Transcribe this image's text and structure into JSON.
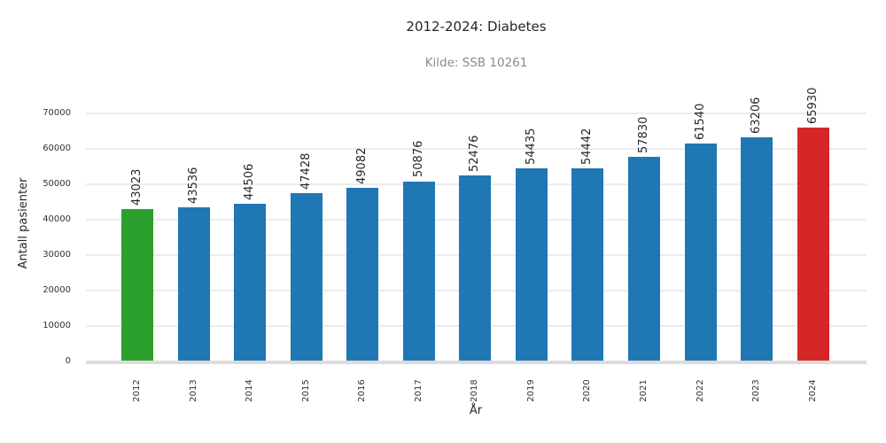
{
  "header": {
    "title": "2012-2024: Diabetes",
    "subtitle": "Kilde: SSB 10261"
  },
  "colors": {
    "first_bar": "#2ca02c",
    "default_bar": "#1f77b4",
    "last_bar": "#d62728",
    "gridline": "#ececec",
    "axis_baseline": "#dcdcdc",
    "text": "#262626",
    "tick_text": "#333333",
    "subtitle_text": "#8a8a8a"
  },
  "chart_data": {
    "type": "bar",
    "title": "2012-2024: Diabetes",
    "subtitle": "Kilde: SSB 10261",
    "xlabel": "År",
    "ylabel": "Antall pasienter",
    "categories": [
      "2012",
      "2013",
      "2014",
      "2015",
      "2016",
      "2017",
      "2018",
      "2019",
      "2020",
      "2021",
      "2022",
      "2023",
      "2024"
    ],
    "values": [
      43023,
      43536,
      44506,
      47428,
      49082,
      50876,
      52476,
      54435,
      54442,
      57830,
      61540,
      63206,
      65930
    ],
    "bar_colors": [
      "#2ca02c",
      "#1f77b4",
      "#1f77b4",
      "#1f77b4",
      "#1f77b4",
      "#1f77b4",
      "#1f77b4",
      "#1f77b4",
      "#1f77b4",
      "#1f77b4",
      "#1f77b4",
      "#1f77b4",
      "#d62728"
    ],
    "value_labels_rotation_deg": 90,
    "xtick_rotation_deg": 90,
    "ylim": [
      0,
      70000
    ],
    "yticks": [
      0,
      10000,
      20000,
      30000,
      40000,
      50000,
      60000,
      70000
    ],
    "grid": "horizontal",
    "legend": "none"
  }
}
